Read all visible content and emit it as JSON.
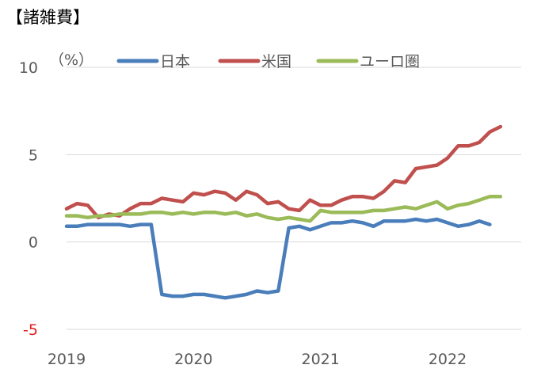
{
  "title": "【諸雑費】",
  "chart_data": {
    "type": "line",
    "unit_label": "（%）",
    "ylim": [
      -5,
      10
    ],
    "yticks": [
      {
        "value": 10,
        "label": "10",
        "color": "#595959"
      },
      {
        "value": 5,
        "label": "5",
        "color": "#595959"
      },
      {
        "value": 0,
        "label": "0",
        "color": "#595959"
      },
      {
        "value": -5,
        "label": "-5",
        "color": "#e02020"
      }
    ],
    "xlim": [
      2019.0,
      2022.58
    ],
    "xticks": [
      {
        "value": 2019.0,
        "label": "2019"
      },
      {
        "value": 2020.0,
        "label": "2020"
      },
      {
        "value": 2021.0,
        "label": "2021"
      },
      {
        "value": 2022.0,
        "label": "2022"
      }
    ],
    "grid": true,
    "legend_position": "top",
    "x": [
      2019.0,
      2019.083,
      2019.167,
      2019.25,
      2019.333,
      2019.417,
      2019.5,
      2019.583,
      2019.667,
      2019.75,
      2019.833,
      2019.917,
      2020.0,
      2020.083,
      2020.167,
      2020.25,
      2020.333,
      2020.417,
      2020.5,
      2020.583,
      2020.667,
      2020.75,
      2020.833,
      2020.917,
      2021.0,
      2021.083,
      2021.167,
      2021.25,
      2021.333,
      2021.417,
      2021.5,
      2021.583,
      2021.667,
      2021.75,
      2021.833,
      2021.917,
      2022.0,
      2022.083,
      2022.167,
      2022.25,
      2022.333,
      2022.417
    ],
    "series": [
      {
        "name": "日本",
        "color": "#4a7ebb",
        "values": [
          0.9,
          0.9,
          1.0,
          1.0,
          1.0,
          1.0,
          0.9,
          1.0,
          1.0,
          -3.0,
          -3.1,
          -3.1,
          -3.0,
          -3.0,
          -3.1,
          -3.2,
          -3.1,
          -3.0,
          -2.8,
          -2.9,
          -2.8,
          0.8,
          0.9,
          0.7,
          0.9,
          1.1,
          1.1,
          1.2,
          1.1,
          0.9,
          1.2,
          1.2,
          1.2,
          1.3,
          1.2,
          1.3,
          1.1,
          0.9,
          1.0,
          1.2,
          1.0,
          null
        ]
      },
      {
        "name": "米国",
        "color": "#c0504d",
        "values": [
          1.9,
          2.2,
          2.1,
          1.4,
          1.6,
          1.5,
          1.9,
          2.2,
          2.2,
          2.5,
          2.4,
          2.3,
          2.8,
          2.7,
          2.9,
          2.8,
          2.4,
          2.9,
          2.7,
          2.2,
          2.3,
          1.9,
          1.8,
          2.4,
          2.1,
          2.1,
          2.4,
          2.6,
          2.6,
          2.5,
          2.9,
          3.5,
          3.4,
          4.2,
          4.3,
          4.4,
          4.8,
          5.5,
          5.5,
          5.7,
          6.3,
          6.6
        ]
      },
      {
        "name": "ユーロ圏",
        "color": "#9bbb59",
        "values": [
          1.5,
          1.5,
          1.4,
          1.5,
          1.5,
          1.6,
          1.6,
          1.6,
          1.7,
          1.7,
          1.6,
          1.7,
          1.6,
          1.7,
          1.7,
          1.6,
          1.7,
          1.5,
          1.6,
          1.4,
          1.3,
          1.4,
          1.3,
          1.2,
          1.8,
          1.7,
          1.7,
          1.7,
          1.7,
          1.8,
          1.8,
          1.9,
          2.0,
          1.9,
          2.1,
          2.3,
          1.9,
          2.1,
          2.2,
          2.4,
          2.6,
          2.6
        ]
      }
    ]
  }
}
